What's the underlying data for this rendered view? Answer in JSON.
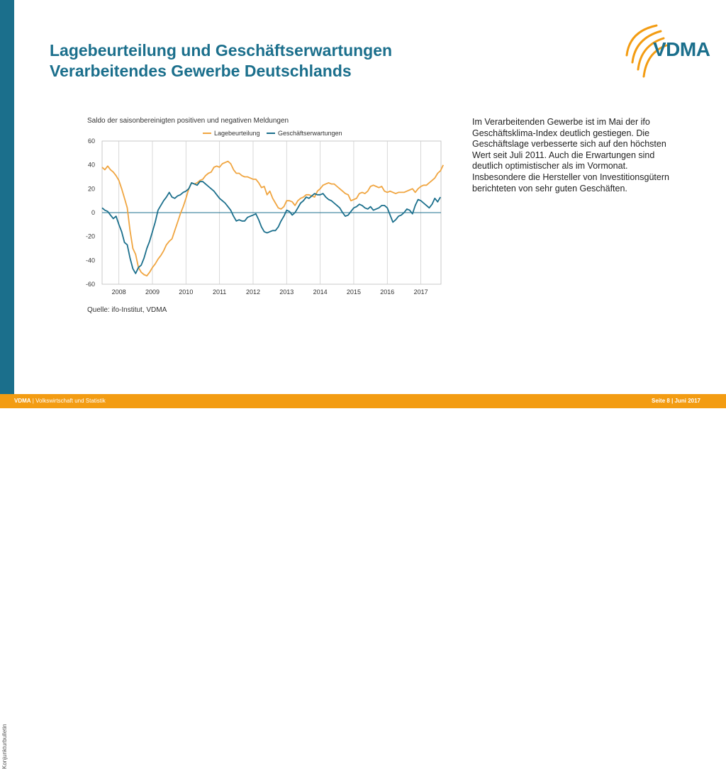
{
  "header": {
    "title_line1": "Lagebeurteilung und Geschäftserwartungen",
    "title_line2": "Verarbeitendes Gewerbe Deutschlands",
    "logo_text": "VDMA"
  },
  "sidebar": {
    "label": "Konjunkturbulletin"
  },
  "description": "Im Verarbeitenden Gewerbe ist im Mai der ifo Geschäftsklima-Index deutlich gestiegen. Die Geschäftslage verbesserte sich auf den höchsten Wert seit Juli 2011. Auch die Erwartungen sind deutlich optimistischer als im Vormonat. Insbesondere die Hersteller von Investitionsgütern berichteten von sehr guten Geschäften.",
  "footer": {
    "org": "VDMA",
    "section": "| Volkswirtschaft und Statistik",
    "page": "Seite 8 | Juni 2017"
  },
  "colors": {
    "accent": "#1b6f8c",
    "orange": "#f39c12",
    "series1": "#f0a540",
    "series2": "#1b6f8c"
  },
  "chart_data": {
    "type": "line",
    "title": "Saldo der saisonbereinigten positiven und negativen Meldungen",
    "source": "Quelle: ifo-Institut, VDMA",
    "x_start": 2007.5,
    "x_step_months": 1,
    "xlim": [
      2007.5,
      2017.6
    ],
    "ylim": [
      -60,
      60
    ],
    "yticks": [
      "60",
      "40",
      "20",
      "0",
      "-20",
      "-40",
      "-60"
    ],
    "ytick_values": [
      60,
      40,
      20,
      0,
      -20,
      -40,
      -60
    ],
    "xticks": [
      "2008",
      "2009",
      "2010",
      "2011",
      "2012",
      "2013",
      "2014",
      "2015",
      "2016",
      "2017"
    ],
    "xtick_values": [
      2008,
      2009,
      2010,
      2011,
      2012,
      2013,
      2014,
      2015,
      2016,
      2017
    ],
    "grid": "vertical",
    "legend": "top",
    "series": [
      {
        "name": "Lagebeurteilung",
        "values": [
          38,
          36,
          39,
          36,
          34,
          31,
          27,
          20,
          12,
          4,
          -15,
          -30,
          -35,
          -46,
          -50,
          -52,
          -53,
          -50,
          -46,
          -43,
          -39,
          -36,
          -32,
          -27,
          -24,
          -22,
          -15,
          -8,
          -1,
          5,
          12,
          20,
          25,
          24,
          25,
          27,
          28,
          31,
          33,
          34,
          38,
          39,
          38,
          41,
          42,
          43,
          41,
          36,
          33,
          33,
          31,
          30,
          30,
          29,
          28,
          28,
          25,
          21,
          22,
          15,
          18,
          12,
          8,
          4,
          3,
          5,
          10,
          10,
          9,
          6,
          10,
          12,
          13,
          15,
          15,
          14,
          13,
          18,
          20,
          23,
          24,
          25,
          24,
          24,
          22,
          20,
          18,
          16,
          15,
          10,
          11,
          12,
          16,
          17,
          16,
          18,
          22,
          23,
          22,
          21,
          22,
          18,
          17,
          18,
          17,
          16,
          17,
          17,
          17,
          18,
          19,
          20,
          17,
          20,
          22,
          23,
          23,
          25,
          27,
          29,
          33,
          35,
          40
        ]
      },
      {
        "name": "Geschäftserwartungen",
        "values": [
          4,
          2,
          1,
          -2,
          -5,
          -3,
          -10,
          -16,
          -25,
          -27,
          -38,
          -47,
          -51,
          -46,
          -44,
          -38,
          -30,
          -24,
          -16,
          -8,
          2,
          6,
          10,
          13,
          17,
          13,
          12,
          14,
          15,
          17,
          18,
          20,
          25,
          24,
          23,
          26,
          26,
          24,
          22,
          20,
          18,
          15,
          12,
          10,
          8,
          5,
          2,
          -3,
          -7,
          -6,
          -7,
          -7,
          -4,
          -3,
          -2,
          -1,
          -6,
          -12,
          -16,
          -17,
          -16,
          -15,
          -15,
          -12,
          -7,
          -3,
          2,
          1,
          -2,
          0,
          4,
          8,
          10,
          13,
          12,
          14,
          16,
          15,
          15,
          16,
          13,
          11,
          10,
          8,
          6,
          4,
          0,
          -3,
          -2,
          1,
          4,
          5,
          7,
          6,
          4,
          3,
          5,
          2,
          3,
          4,
          6,
          6,
          4,
          -2,
          -8,
          -6,
          -3,
          -2,
          0,
          3,
          2,
          -1,
          6,
          11,
          10,
          8,
          6,
          4,
          7,
          12,
          9,
          13
        ]
      }
    ]
  }
}
